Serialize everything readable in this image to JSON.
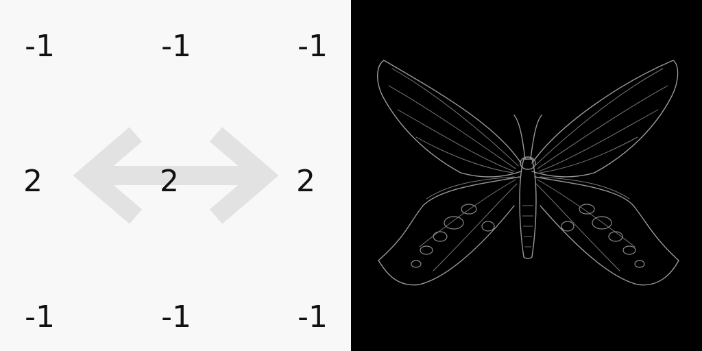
{
  "kernel": {
    "rows": [
      [
        "-1",
        "-1",
        "-1"
      ],
      [
        "2",
        "2",
        "2"
      ],
      [
        "-1",
        "-1",
        "-1"
      ]
    ]
  },
  "overlay": {
    "icon": "double-headed-horizontal-arrow-icon",
    "color": "#e2e2e2"
  },
  "result": {
    "icon": "butterfly-icon",
    "background": "#000000",
    "edge_color": "#9a9a9a"
  }
}
